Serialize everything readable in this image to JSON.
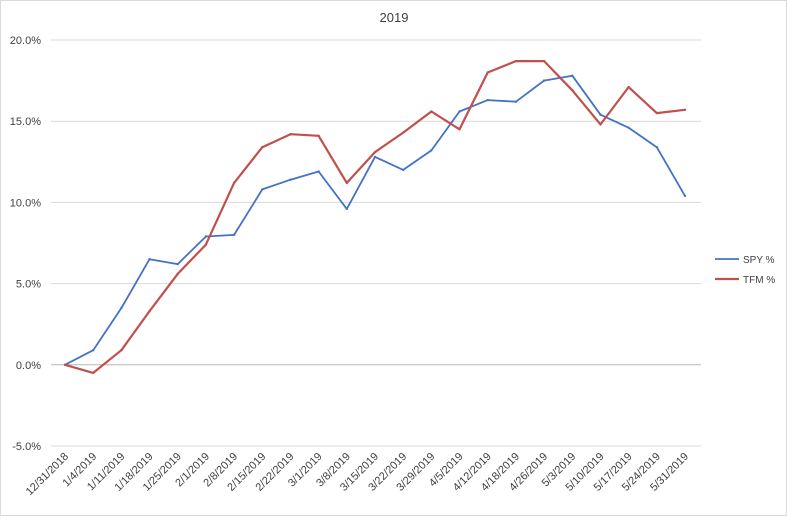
{
  "chart_data": {
    "type": "line",
    "title": "2019",
    "xlabel": "",
    "ylabel": "",
    "ylim": [
      -5,
      20
    ],
    "y_ticks": [
      "-5.0%",
      "0.0%",
      "5.0%",
      "10.0%",
      "15.0%",
      "20.0%"
    ],
    "y_tick_values": [
      -5,
      0,
      5,
      10,
      15,
      20
    ],
    "grid": true,
    "legend_position": "right",
    "categories": [
      "12/31/2018",
      "1/4/2019",
      "1/11/2019",
      "1/18/2019",
      "1/25/2019",
      "2/1/2019",
      "2/8/2019",
      "2/15/2019",
      "2/22/2019",
      "3/1/2019",
      "3/8/2019",
      "3/15/2019",
      "3/22/2019",
      "3/29/2019",
      "4/5/2019",
      "4/12/2019",
      "4/18/2019",
      "4/26/2019",
      "5/3/2019",
      "5/10/2019",
      "5/17/2019",
      "5/24/2019",
      "5/31/2019"
    ],
    "series": [
      {
        "name": "SPY %",
        "color": "#4472c4",
        "values": [
          0.0,
          0.9,
          3.5,
          6.5,
          6.2,
          7.9,
          8.0,
          10.8,
          11.4,
          11.9,
          9.6,
          12.8,
          12.0,
          13.2,
          15.6,
          16.3,
          16.2,
          17.5,
          17.8,
          15.4,
          14.6,
          13.4,
          10.4
        ]
      },
      {
        "name": "TFM %",
        "color": "#c0504d",
        "values": [
          0.0,
          -0.5,
          0.9,
          3.3,
          5.6,
          7.4,
          11.2,
          13.4,
          14.2,
          14.1,
          11.2,
          13.1,
          14.3,
          15.6,
          14.5,
          18.0,
          18.7,
          18.7,
          16.9,
          14.8,
          17.1,
          15.5,
          15.7
        ]
      }
    ]
  }
}
